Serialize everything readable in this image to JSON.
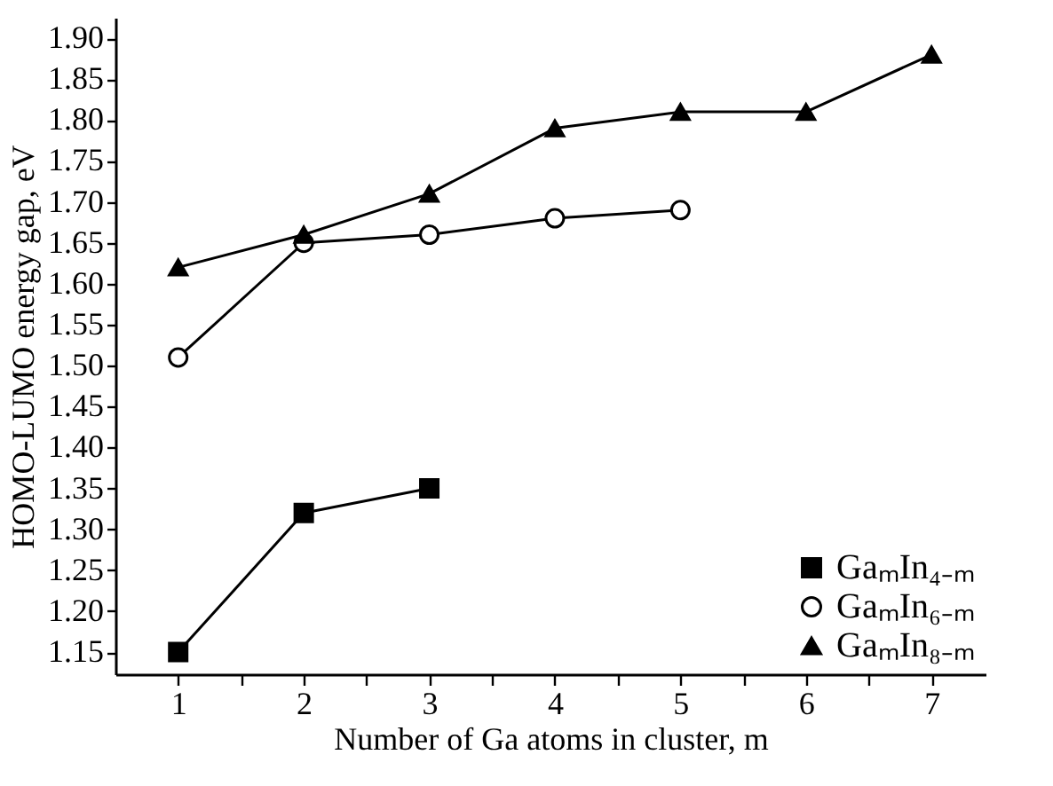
{
  "chart_data": {
    "type": "line",
    "xlabel": "Number of Ga atoms in cluster, m",
    "ylabel": "HOMO-LUMO energy gap, eV",
    "xlim": [
      0.5,
      7.43
    ],
    "ylim": [
      1.123,
      1.925
    ],
    "xticks": [
      1,
      {
        "value": 1.5,
        "label": null
      },
      2,
      {
        "value": 2.5,
        "label": null
      },
      3,
      {
        "value": 3.5,
        "label": null
      },
      4,
      {
        "value": 4.5,
        "label": null
      },
      5,
      {
        "value": 5.5,
        "label": null
      },
      6,
      {
        "value": 6.5,
        "label": null
      },
      7
    ],
    "yticks": [
      1.15,
      {
        "value": 1.2,
        "label": "1.20"
      },
      1.25,
      {
        "value": 1.3,
        "label": "1.30"
      },
      1.35,
      {
        "value": 1.4,
        "label": "1.40"
      },
      1.45,
      {
        "value": 1.5,
        "label": "1.50"
      },
      1.55,
      {
        "value": 1.6,
        "label": "1.60"
      },
      1.65,
      {
        "value": 1.7,
        "label": "1.70"
      },
      1.75,
      {
        "value": 1.8,
        "label": "1.80"
      },
      1.85,
      {
        "value": 1.9,
        "label": "1.90"
      }
    ],
    "grid": false,
    "legend": "bottom right",
    "line_style": "solid",
    "series": [
      {
        "name": "GaₘIn₄₋ₘ",
        "color": "#000000",
        "marker": "square",
        "x": [
          1,
          2,
          3
        ],
        "values": [
          1.15,
          1.32,
          1.35
        ]
      },
      {
        "name": "GaₘIn₆₋ₘ",
        "color": "#000000",
        "marker": "circle",
        "x": [
          1,
          2,
          3,
          4,
          5
        ],
        "values": [
          1.51,
          1.65,
          1.66,
          1.68,
          1.69
        ]
      },
      {
        "name": "GaₘIn₈₋ₘ",
        "color": "#000000",
        "marker": "triangle",
        "x": [
          1,
          2,
          3,
          4,
          5,
          6,
          7
        ],
        "values": [
          1.62,
          1.66,
          1.71,
          1.79,
          1.81,
          1.81,
          1.88
        ]
      }
    ]
  }
}
